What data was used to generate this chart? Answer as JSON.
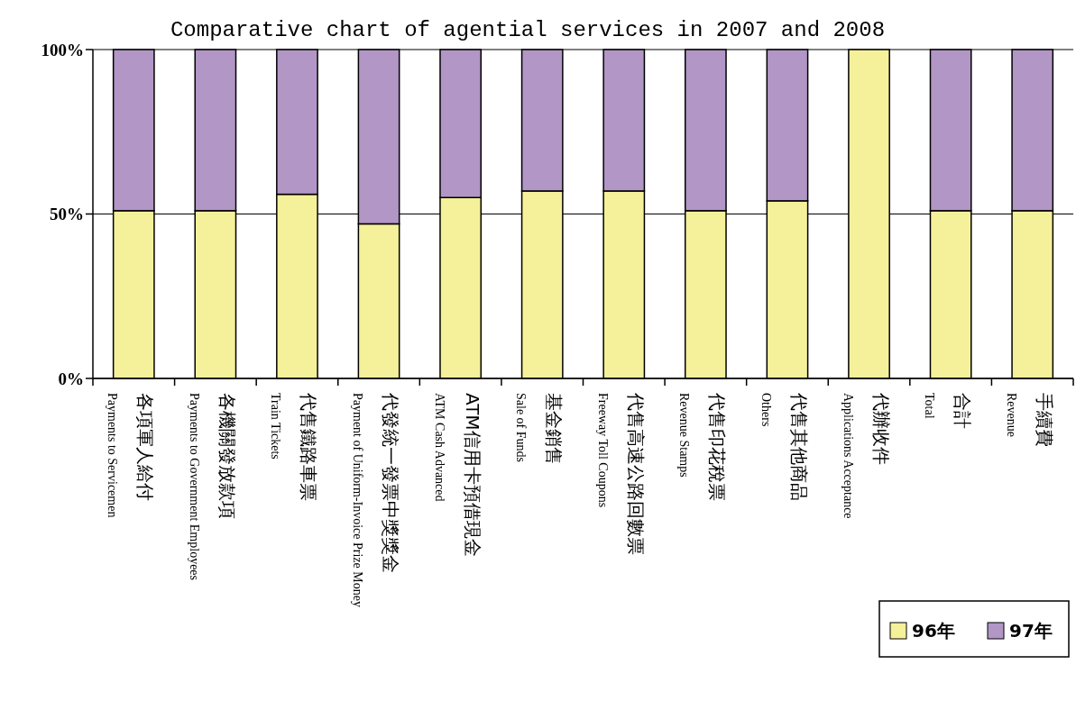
{
  "chart_data": {
    "type": "bar",
    "stacked": true,
    "title": "Comparative chart of agential services in 2007 and 2008",
    "categories": [
      "各項軍人給付\nPayments to Servicemen",
      "各機關發放款項\nPayments to Government Employees",
      "代售鐵路車票\nTrain Tickets",
      "代發統一發票中獎獎金\nPayment of Uniform-Invoice Prize Money",
      "ATM信用卡預借現金\nATM Cash Advanced",
      "基金銷售\nSale of Funds",
      "代售高速公路回數票\nFreeway Toll Coupons",
      "代售印花稅票\nRevenue Stamps",
      "代售其他商品\nOthers",
      "代辦收件\nApplications Acceptance",
      "合計\nTotal",
      "手續費\nRevenue"
    ],
    "series": [
      {
        "name": "96年",
        "color": "#f5f09a",
        "values": [
          51,
          51,
          56,
          47,
          55,
          57,
          57,
          51,
          54,
          100,
          51,
          51
        ]
      },
      {
        "name": "97年",
        "color": "#b196c6",
        "values": [
          49,
          49,
          44,
          53,
          45,
          43,
          43,
          49,
          46,
          0,
          49,
          49
        ]
      }
    ],
    "ylim": [
      0,
      100
    ],
    "yticks": [
      {
        "value": 0,
        "label": "0%"
      },
      {
        "value": 50,
        "label": "50%"
      },
      {
        "value": 100,
        "label": "100%"
      }
    ],
    "grid": "y",
    "legend": "bottom right"
  }
}
